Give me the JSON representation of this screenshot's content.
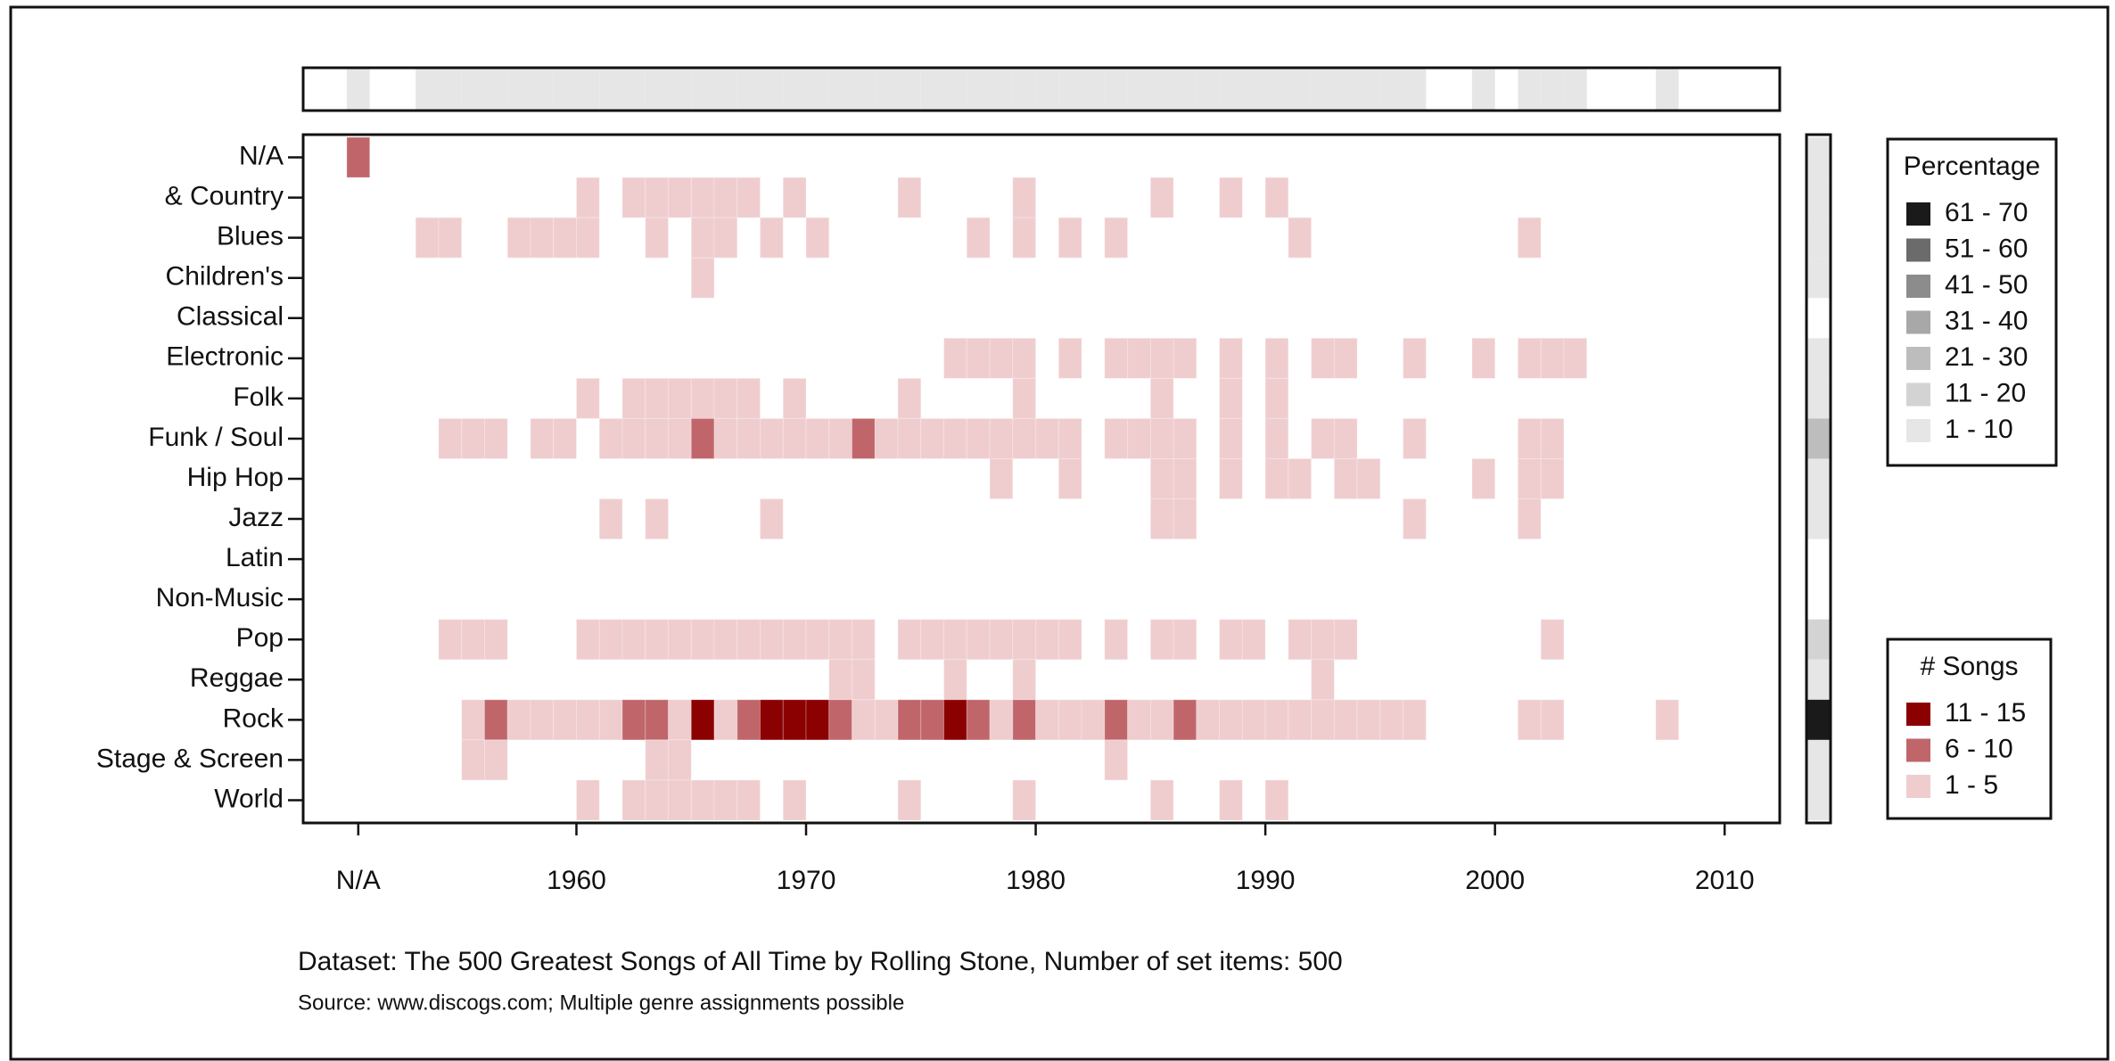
{
  "chart_data": {
    "type": "heatmap",
    "caption": "Dataset: The 500 Greatest Songs of All Time by Rolling Stone, Number of set items: 500",
    "source": "Source: www.discogs.com; Multiple genre assignments possible",
    "xlim": [
      1948.1,
      2012.4
    ],
    "xticks": [
      {
        "value": 1950.5,
        "label": "N/A"
      },
      1960,
      1970,
      1980,
      1990,
      2000,
      2010
    ],
    "song_legend": {
      "title": "# Songs",
      "bins": [
        "11 - 15",
        "6 - 10",
        "1 - 5"
      ],
      "colors": [
        "#8b0000",
        "#c0666b",
        "#efcdcf"
      ]
    },
    "percentage_legend": {
      "title": "Percentage",
      "bins": [
        "61 - 70",
        "51 - 60",
        "41 - 50",
        "31 - 40",
        "21 - 30",
        "11 - 20",
        "1 - 10"
      ],
      "colors": [
        "#1a1a1a",
        "#6b6b6b",
        "#8c8c8c",
        "#a8a8a8",
        "#bdbdbd",
        "#d3d3d3",
        "#e6e6e6"
      ]
    },
    "year_strip": {
      "x": [
        1950,
        1953,
        1954,
        1955,
        1956,
        1957,
        1958,
        1959,
        1960,
        1961,
        1962,
        1963,
        1964,
        1965,
        1966,
        1967,
        1968,
        1969,
        1970,
        1971,
        1972,
        1973,
        1974,
        1975,
        1976,
        1977,
        1978,
        1979,
        1980,
        1981,
        1982,
        1983,
        1984,
        1985,
        1986,
        1987,
        1988,
        1989,
        1990,
        1991,
        1992,
        1993,
        1994,
        1995,
        1996,
        1999,
        2001,
        2002,
        2003,
        2007
      ],
      "bin": [
        6,
        6,
        6,
        6,
        6,
        6,
        6,
        6,
        6,
        6,
        6,
        6,
        6,
        6,
        6,
        6,
        6,
        6,
        6,
        6,
        6,
        6,
        6,
        6,
        6,
        6,
        6,
        6,
        6,
        6,
        6,
        6,
        6,
        6,
        6,
        6,
        6,
        6,
        6,
        6,
        6,
        6,
        6,
        6,
        6,
        6,
        6,
        6,
        6,
        6
      ]
    },
    "rows": [
      {
        "name": "N/A",
        "x": [
          1950
        ],
        "bin": [
          1
        ],
        "strip": 6
      },
      {
        "name": "& Country",
        "x": [
          1960,
          1962,
          1963,
          1964,
          1965,
          1966,
          1967,
          1969,
          1974,
          1979,
          1985,
          1988,
          1990
        ],
        "bin": [
          2,
          2,
          2,
          2,
          2,
          2,
          2,
          2,
          2,
          2,
          2,
          2,
          2
        ],
        "strip": 6
      },
      {
        "name": "Blues",
        "x": [
          1953,
          1954,
          1957,
          1958,
          1959,
          1960,
          1963,
          1965,
          1966,
          1968,
          1970,
          1977,
          1979,
          1981,
          1983,
          1991,
          2001
        ],
        "bin": [
          2,
          2,
          2,
          2,
          2,
          2,
          2,
          2,
          2,
          2,
          2,
          2,
          2,
          2,
          2,
          2,
          2
        ],
        "strip": 6
      },
      {
        "name": "Children's",
        "x": [
          1965
        ],
        "bin": [
          2
        ],
        "strip": 6
      },
      {
        "name": "Classical",
        "x": [],
        "bin": [],
        "strip": null
      },
      {
        "name": "Electronic",
        "x": [
          1976,
          1977,
          1978,
          1979,
          1981,
          1983,
          1984,
          1985,
          1986,
          1988,
          1990,
          1992,
          1993,
          1996,
          1999,
          2001,
          2002,
          2003
        ],
        "bin": [
          2,
          2,
          2,
          2,
          2,
          2,
          2,
          2,
          2,
          2,
          2,
          2,
          2,
          2,
          2,
          2,
          2,
          2
        ],
        "strip": 6
      },
      {
        "name": "Folk",
        "x": [
          1960,
          1962,
          1963,
          1964,
          1965,
          1966,
          1967,
          1969,
          1974,
          1979,
          1985,
          1988,
          1990
        ],
        "bin": [
          2,
          2,
          2,
          2,
          2,
          2,
          2,
          2,
          2,
          2,
          2,
          2,
          2
        ],
        "strip": 6
      },
      {
        "name": "Funk / Soul",
        "x": [
          1954,
          1955,
          1956,
          1958,
          1959,
          1961,
          1962,
          1963,
          1964,
          1965,
          1966,
          1967,
          1968,
          1969,
          1970,
          1971,
          1972,
          1973,
          1974,
          1975,
          1976,
          1977,
          1978,
          1979,
          1980,
          1981,
          1983,
          1984,
          1985,
          1986,
          1988,
          1990,
          1992,
          1993,
          1996,
          2001,
          2002
        ],
        "bin": [
          2,
          2,
          2,
          2,
          2,
          2,
          2,
          2,
          2,
          1,
          2,
          2,
          2,
          2,
          2,
          2,
          1,
          2,
          2,
          2,
          2,
          2,
          2,
          2,
          2,
          2,
          2,
          2,
          2,
          2,
          2,
          2,
          2,
          2,
          2,
          2,
          2
        ],
        "strip": 4
      },
      {
        "name": "Hip Hop",
        "x": [
          1978,
          1981,
          1985,
          1986,
          1988,
          1990,
          1991,
          1993,
          1994,
          1999,
          2001,
          2002
        ],
        "bin": [
          2,
          2,
          2,
          2,
          2,
          2,
          2,
          2,
          2,
          2,
          2,
          2
        ],
        "strip": 6
      },
      {
        "name": "Jazz",
        "x": [
          1961,
          1963,
          1968,
          1985,
          1986,
          1996,
          2001
        ],
        "bin": [
          2,
          2,
          2,
          2,
          2,
          2,
          2
        ],
        "strip": 6
      },
      {
        "name": "Latin",
        "x": [],
        "bin": [],
        "strip": null
      },
      {
        "name": "Non-Music",
        "x": [],
        "bin": [],
        "strip": null
      },
      {
        "name": "Pop",
        "x": [
          1954,
          1955,
          1956,
          1960,
          1961,
          1962,
          1963,
          1964,
          1965,
          1966,
          1967,
          1968,
          1969,
          1970,
          1971,
          1972,
          1974,
          1975,
          1976,
          1977,
          1978,
          1979,
          1980,
          1981,
          1983,
          1985,
          1986,
          1988,
          1989,
          1991,
          1992,
          1993,
          2002
        ],
        "bin": [
          2,
          2,
          2,
          2,
          2,
          2,
          2,
          2,
          2,
          2,
          2,
          2,
          2,
          2,
          2,
          2,
          2,
          2,
          2,
          2,
          2,
          2,
          2,
          2,
          2,
          2,
          2,
          2,
          2,
          2,
          2,
          2,
          2
        ],
        "strip": 5
      },
      {
        "name": "Reggae",
        "x": [
          1971,
          1972,
          1976,
          1979,
          1992
        ],
        "bin": [
          2,
          2,
          2,
          2,
          2
        ],
        "strip": 6
      },
      {
        "name": "Rock",
        "x": [
          1955,
          1956,
          1957,
          1958,
          1959,
          1960,
          1961,
          1962,
          1963,
          1964,
          1965,
          1966,
          1967,
          1968,
          1969,
          1970,
          1971,
          1972,
          1973,
          1974,
          1975,
          1976,
          1977,
          1978,
          1979,
          1980,
          1981,
          1982,
          1983,
          1984,
          1985,
          1986,
          1987,
          1988,
          1989,
          1990,
          1991,
          1992,
          1993,
          1994,
          1995,
          1996,
          2001,
          2002,
          2007
        ],
        "bin": [
          2,
          1,
          2,
          2,
          2,
          2,
          2,
          1,
          1,
          2,
          0,
          2,
          1,
          0,
          0,
          0,
          1,
          2,
          2,
          1,
          1,
          0,
          1,
          2,
          1,
          2,
          2,
          2,
          1,
          2,
          2,
          1,
          2,
          2,
          2,
          2,
          2,
          2,
          2,
          2,
          2,
          2,
          2,
          2,
          2
        ],
        "strip": 0
      },
      {
        "name": "Stage & Screen",
        "x": [
          1955,
          1956,
          1963,
          1964,
          1983
        ],
        "bin": [
          2,
          2,
          2,
          2,
          2
        ],
        "strip": 6
      },
      {
        "name": "World",
        "x": [
          1960,
          1962,
          1963,
          1964,
          1965,
          1966,
          1967,
          1969,
          1974,
          1979,
          1985,
          1988,
          1990
        ],
        "bin": [
          2,
          2,
          2,
          2,
          2,
          2,
          2,
          2,
          2,
          2,
          2,
          2,
          2
        ],
        "strip": 6
      }
    ]
  }
}
